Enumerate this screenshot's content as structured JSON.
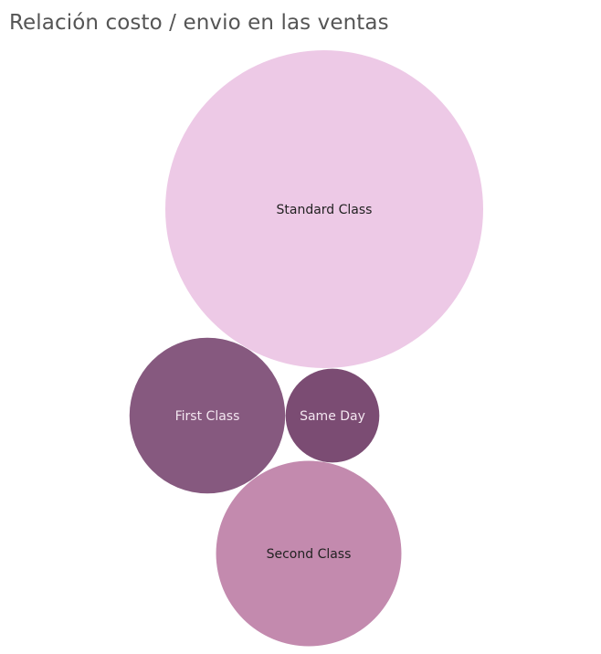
{
  "chart_data": {
    "type": "bubble",
    "title": "Relación costo / envio en las ventas",
    "legend": "none",
    "series": [
      {
        "name": "Standard Class",
        "size": 1.0,
        "color": "#edc9e6",
        "label_color": "#222222"
      },
      {
        "name": "First Class",
        "size": 0.24,
        "color": "#86597f",
        "label_color": "#f3e6f0"
      },
      {
        "name": "Same Day",
        "size": 0.087,
        "color": "#7b4c73",
        "label_color": "#f3e6f0"
      },
      {
        "name": "Second Class",
        "size": 0.34,
        "color": "#c38aae",
        "label_color": "#222222"
      }
    ]
  }
}
